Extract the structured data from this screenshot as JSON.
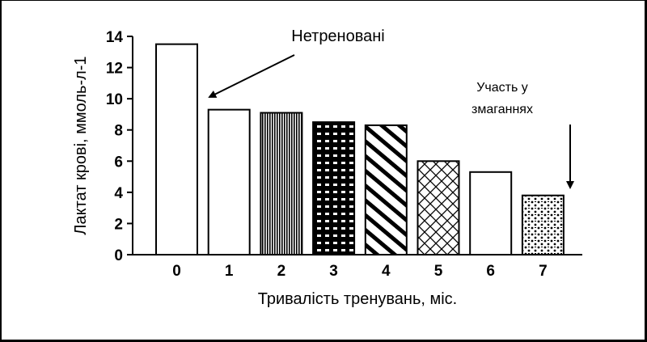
{
  "chart_data": {
    "type": "bar",
    "categories": [
      "0",
      "1",
      "2",
      "3",
      "4",
      "5",
      "6",
      "7"
    ],
    "values": [
      13.5,
      9.3,
      9.1,
      8.5,
      8.3,
      6.0,
      5.3,
      3.8
    ],
    "patterns": [
      "none",
      "none",
      "vertical-lines",
      "bricks",
      "diagonal-stripes",
      "crosshatch",
      "none",
      "dots"
    ],
    "title": "",
    "xlabel": "Тривалість тренувань, міс.",
    "ylabel": "Лактат крові, ммоль-л-1",
    "ylim": [
      0,
      14
    ],
    "yticks": [
      0,
      2,
      4,
      6,
      8,
      10,
      12,
      14
    ],
    "grid": false,
    "annotations": [
      {
        "text": "Нетреновані",
        "points_to_category": "1"
      },
      {
        "lines": [
          "Участь у",
          "змаганнях"
        ],
        "points_to_category": "7"
      }
    ]
  },
  "colors": {
    "ink": "#000000",
    "background": "#ffffff"
  }
}
